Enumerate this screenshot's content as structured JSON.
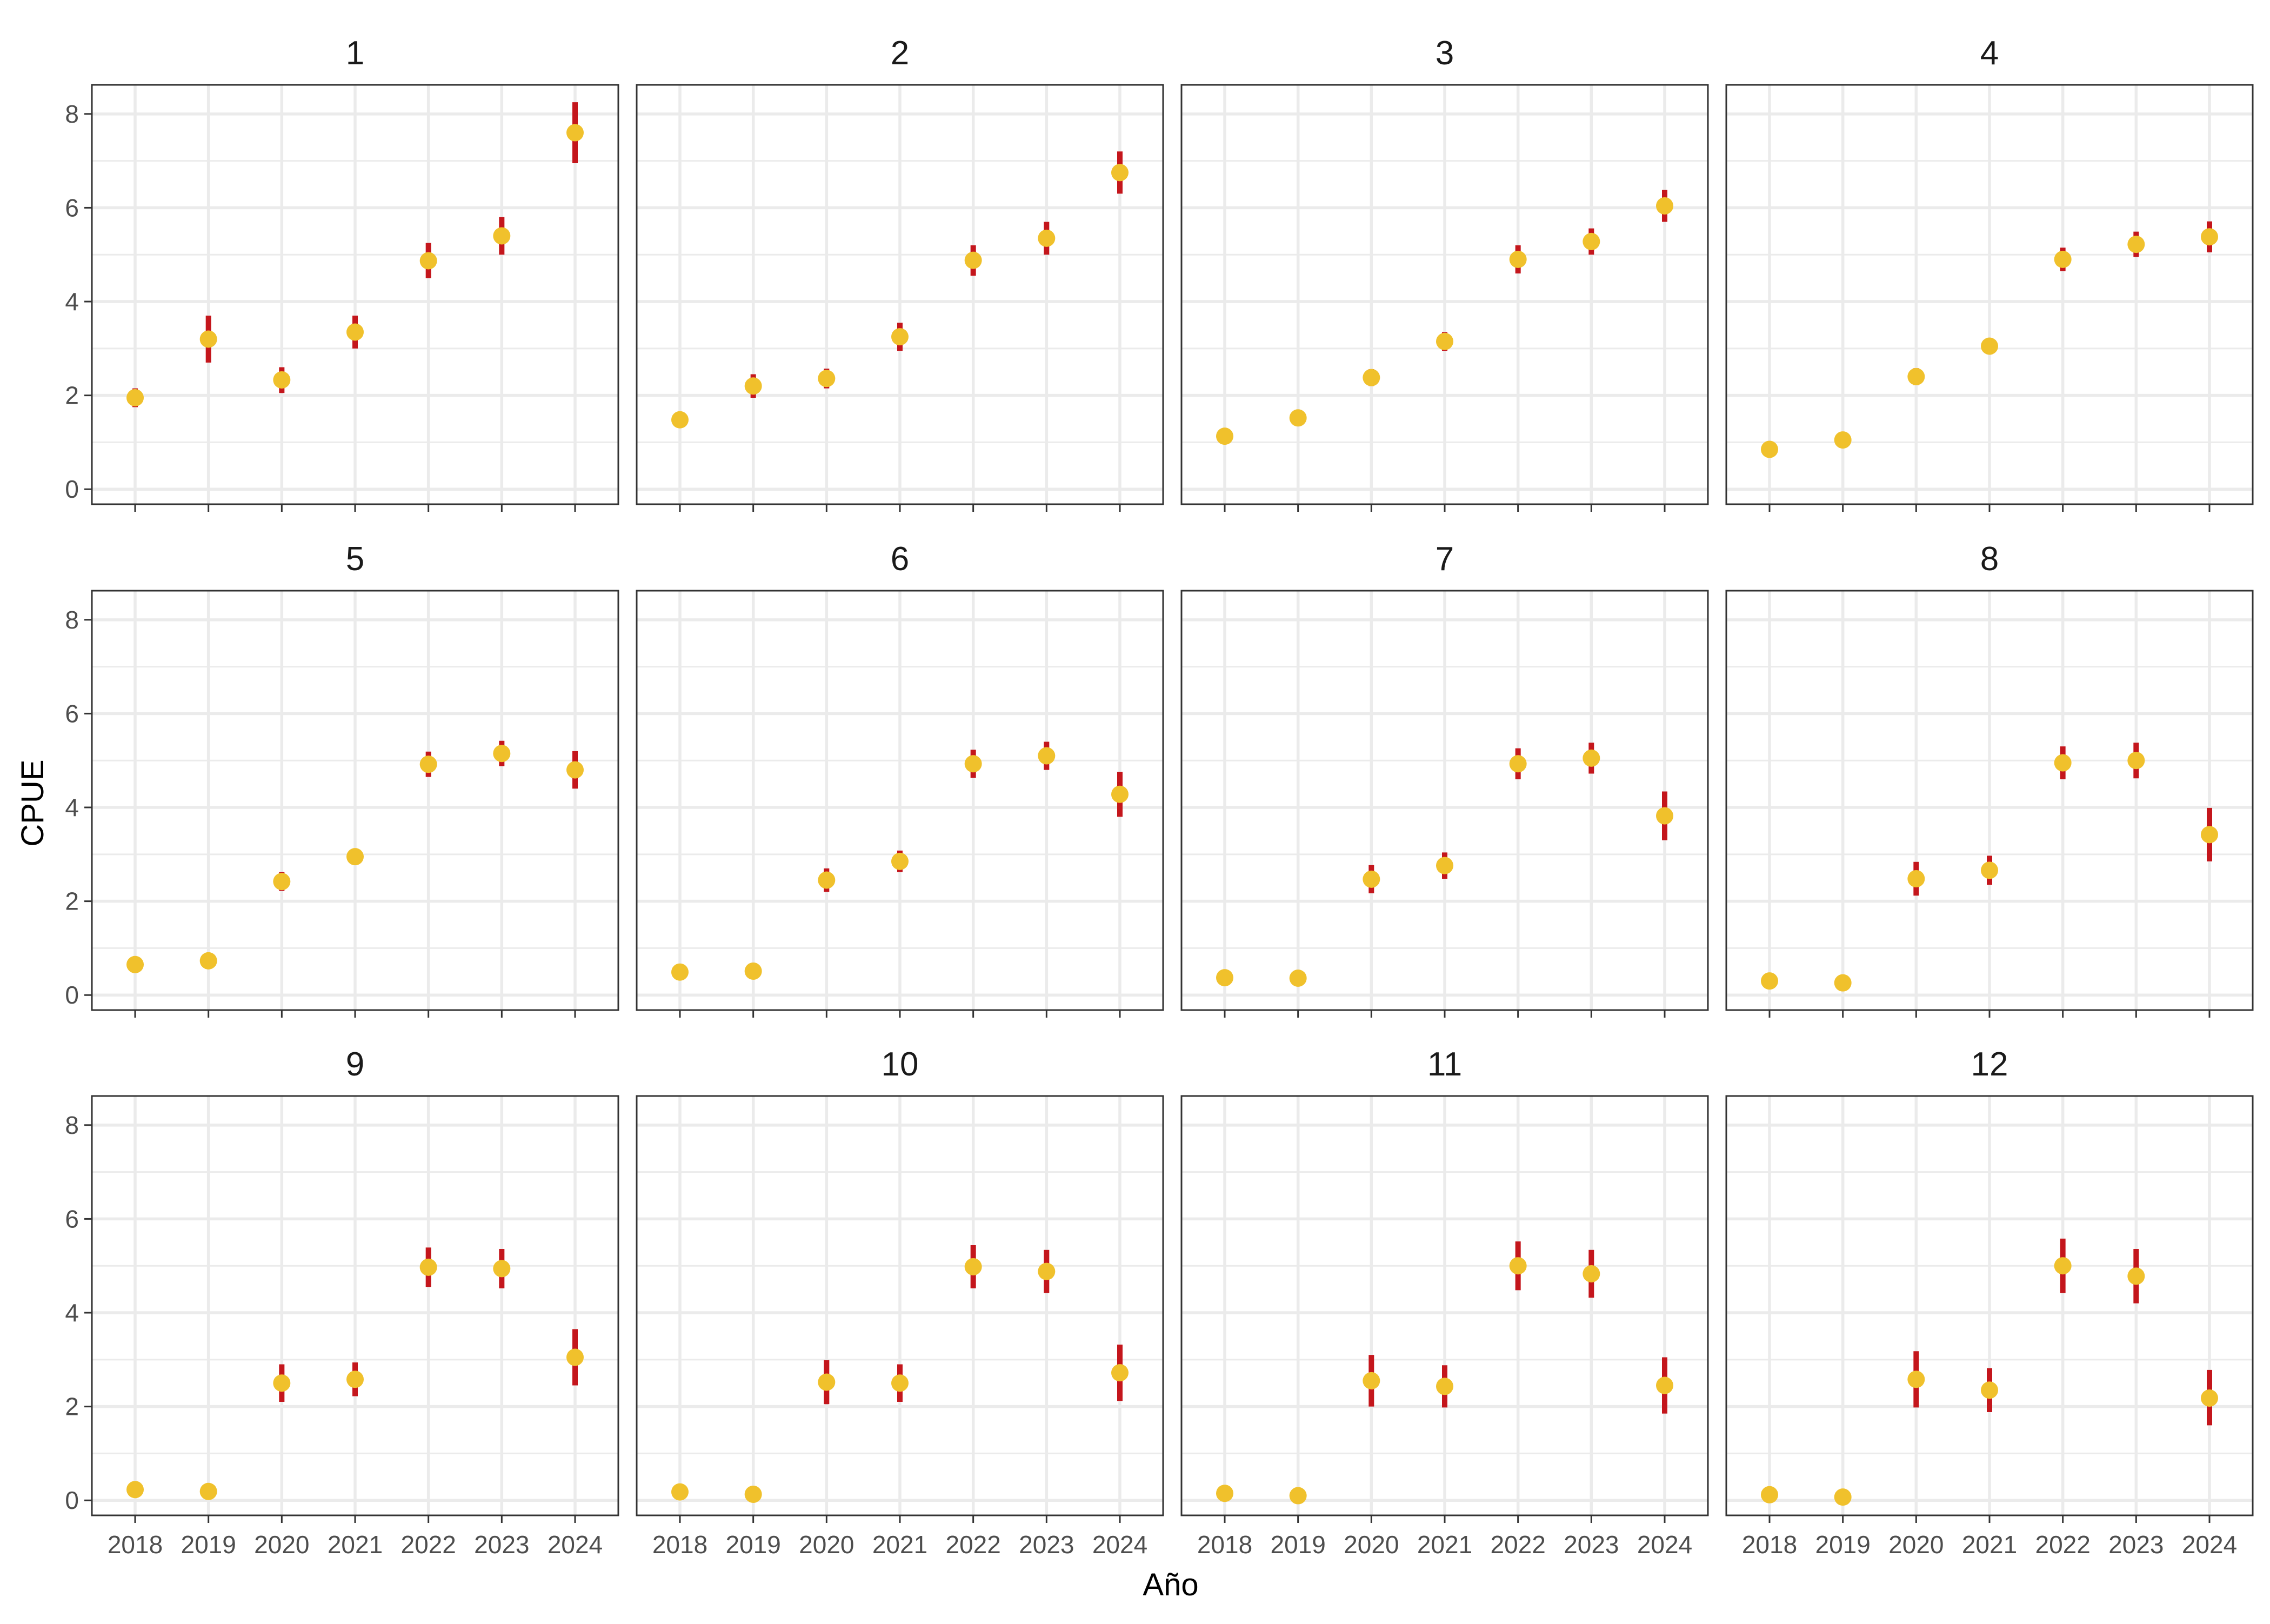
{
  "chart_data": {
    "type": "scatter",
    "facet_layout": "4 columns x 3 rows",
    "xlabel": "Año",
    "ylabel": "CPUE",
    "x": [
      2018,
      2019,
      2020,
      2021,
      2022,
      2023,
      2024
    ],
    "ylim": [
      0,
      8.5
    ],
    "yticks": [
      0,
      2,
      4,
      6,
      8
    ],
    "grid": true,
    "point_color": "#F0C12C",
    "errorbar_color": "#C4161C",
    "grid_color": "#EBEBEB",
    "panel_border_color": "#333333",
    "facets": [
      {
        "title": "1",
        "values": [
          1.95,
          3.2,
          2.33,
          3.35,
          4.87,
          5.4,
          7.6
        ],
        "lower": [
          1.75,
          2.7,
          2.05,
          3.0,
          4.5,
          5.0,
          6.95
        ],
        "upper": [
          2.15,
          3.7,
          2.6,
          3.7,
          5.25,
          5.8,
          8.25
        ]
      },
      {
        "title": "2",
        "values": [
          1.48,
          2.2,
          2.36,
          3.25,
          4.88,
          5.35,
          6.75
        ],
        "lower": [
          1.38,
          1.95,
          2.15,
          2.95,
          4.55,
          5.0,
          6.3
        ],
        "upper": [
          1.58,
          2.45,
          2.57,
          3.55,
          5.2,
          5.7,
          7.2
        ]
      },
      {
        "title": "3",
        "values": [
          1.13,
          1.52,
          2.38,
          3.15,
          4.9,
          5.28,
          6.04
        ],
        "lower": [
          1.05,
          1.42,
          2.2,
          2.95,
          4.6,
          5.0,
          5.7
        ],
        "upper": [
          1.21,
          1.62,
          2.56,
          3.35,
          5.2,
          5.56,
          6.38
        ]
      },
      {
        "title": "4",
        "values": [
          0.85,
          1.05,
          2.4,
          3.05,
          4.9,
          5.22,
          5.38
        ],
        "lower": [
          0.77,
          0.97,
          2.22,
          2.88,
          4.65,
          4.95,
          5.05
        ],
        "upper": [
          0.93,
          1.13,
          2.58,
          3.22,
          5.15,
          5.49,
          5.71
        ]
      },
      {
        "title": "5",
        "values": [
          0.65,
          0.73,
          2.42,
          2.95,
          4.92,
          5.15,
          4.8
        ],
        "lower": [
          0.58,
          0.66,
          2.22,
          2.78,
          4.65,
          4.88,
          4.4
        ],
        "upper": [
          0.72,
          0.8,
          2.62,
          3.12,
          5.19,
          5.42,
          5.2
        ]
      },
      {
        "title": "6",
        "values": [
          0.49,
          0.51,
          2.45,
          2.85,
          4.93,
          5.1,
          4.28
        ],
        "lower": [
          0.42,
          0.44,
          2.2,
          2.62,
          4.63,
          4.8,
          3.8
        ],
        "upper": [
          0.56,
          0.58,
          2.7,
          3.08,
          5.23,
          5.4,
          4.76
        ]
      },
      {
        "title": "7",
        "values": [
          0.37,
          0.36,
          2.47,
          2.76,
          4.93,
          5.05,
          3.82
        ],
        "lower": [
          0.3,
          0.29,
          2.17,
          2.48,
          4.6,
          4.72,
          3.3
        ],
        "upper": [
          0.44,
          0.43,
          2.77,
          3.04,
          5.26,
          5.38,
          4.34
        ]
      },
      {
        "title": "8",
        "values": [
          0.3,
          0.26,
          2.48,
          2.66,
          4.95,
          5.0,
          3.42
        ],
        "lower": [
          0.23,
          0.19,
          2.12,
          2.35,
          4.6,
          4.62,
          2.85
        ],
        "upper": [
          0.37,
          0.33,
          2.84,
          2.97,
          5.3,
          5.38,
          3.99
        ]
      },
      {
        "title": "9",
        "values": [
          0.23,
          0.19,
          2.5,
          2.58,
          4.97,
          4.94,
          3.05
        ],
        "lower": [
          0.16,
          0.12,
          2.1,
          2.22,
          4.55,
          4.52,
          2.45
        ],
        "upper": [
          0.3,
          0.26,
          2.9,
          2.94,
          5.39,
          5.36,
          3.65
        ]
      },
      {
        "title": "10",
        "values": [
          0.18,
          0.13,
          2.52,
          2.5,
          4.98,
          4.88,
          2.72
        ],
        "lower": [
          0.11,
          0.06,
          2.05,
          2.1,
          4.52,
          4.42,
          2.12
        ],
        "upper": [
          0.25,
          0.2,
          2.99,
          2.9,
          5.44,
          5.34,
          3.32
        ]
      },
      {
        "title": "11",
        "values": [
          0.15,
          0.1,
          2.55,
          2.43,
          5.0,
          4.83,
          2.45
        ],
        "lower": [
          0.08,
          0.03,
          2.0,
          1.98,
          4.48,
          4.32,
          1.85
        ],
        "upper": [
          0.22,
          0.17,
          3.1,
          2.88,
          5.52,
          5.34,
          3.05
        ]
      },
      {
        "title": "12",
        "values": [
          0.12,
          0.07,
          2.58,
          2.35,
          5.0,
          4.78,
          2.18
        ],
        "lower": [
          0.05,
          0.0,
          1.98,
          1.88,
          4.42,
          4.2,
          1.6
        ],
        "upper": [
          0.19,
          0.14,
          3.18,
          2.82,
          5.58,
          5.36,
          2.78
        ]
      }
    ]
  }
}
